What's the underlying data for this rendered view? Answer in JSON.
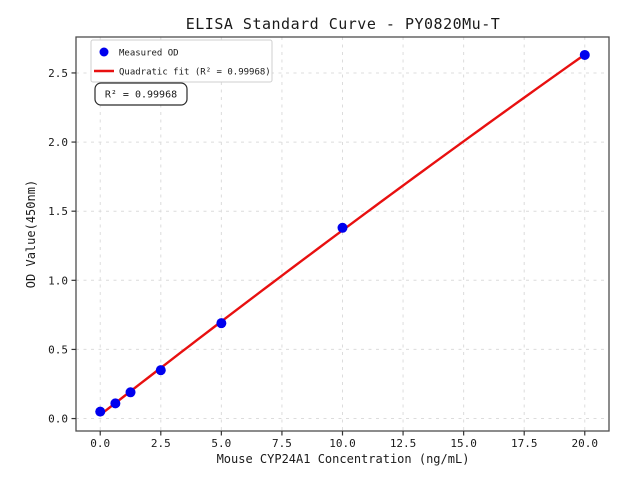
{
  "chart_data": {
    "type": "scatter",
    "title": "ELISA Standard Curve - PY0820Mu-T",
    "xlabel": "Mouse CYP24A1 Concentration (ng/mL)",
    "ylabel": "OD Value(450nm)",
    "xlim": [
      -1,
      21
    ],
    "ylim": [
      -0.09,
      2.76
    ],
    "xtick_labels": [
      "0.0",
      "2.5",
      "5.0",
      "7.5",
      "10.0",
      "12.5",
      "15.0",
      "17.5",
      "20.0"
    ],
    "ytick_labels": [
      "0.0",
      "0.5",
      "1.0",
      "1.5",
      "2.0",
      "2.5"
    ],
    "grid": true,
    "grid_style": "dashed",
    "legend_position": "upper left",
    "series": [
      {
        "name": "Measured OD",
        "kind": "scatter",
        "marker": "circle",
        "color": "#0000ee",
        "x": [
          0,
          0.625,
          1.25,
          2.5,
          5,
          10,
          20
        ],
        "y": [
          0.05,
          0.11,
          0.19,
          0.35,
          0.69,
          1.38,
          2.63
        ]
      },
      {
        "name": "Quadratic fit (R² = 0.99968)",
        "kind": "line",
        "fit": "quadratic",
        "color": "#e81010",
        "x_range": [
          0,
          20
        ]
      }
    ],
    "annotations": [
      {
        "text": "R² = 0.99968"
      }
    ],
    "r_squared": 0.99968
  },
  "colors": {
    "background": "#ffffff",
    "marker_blue": "#0000ee",
    "fit_red": "#e81010",
    "grid": "#dcdcdc",
    "spine": "#4d4d4d",
    "tick": "#333333",
    "text": "#1a1a1a",
    "legend_border": "#cfcfcf",
    "annotation_border": "#2a2a2a"
  }
}
